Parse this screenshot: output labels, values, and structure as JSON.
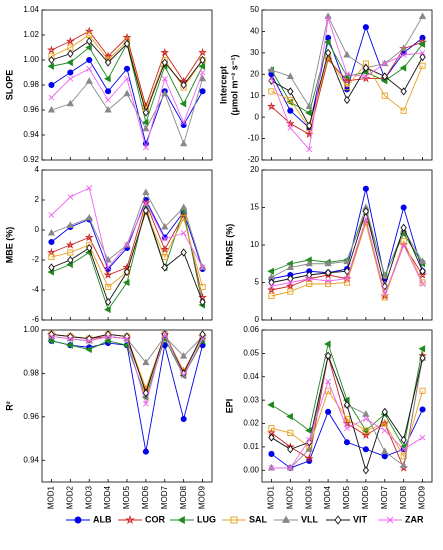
{
  "legend": {
    "series": [
      {
        "name": "ALB",
        "color": "#0000ee",
        "marker": "circle"
      },
      {
        "name": "COR",
        "color": "#cc2222",
        "marker": "star"
      },
      {
        "name": "LUG",
        "color": "#1f8a1f",
        "marker": "triangle-left"
      },
      {
        "name": "SAL",
        "color": "#e8a020",
        "marker": "square"
      },
      {
        "name": "VLL",
        "color": "#888888",
        "marker": "triangle-up"
      },
      {
        "name": "VIT",
        "color": "#111111",
        "marker": "diamond"
      },
      {
        "name": "ZAR",
        "color": "#ee66ee",
        "marker": "x"
      }
    ]
  },
  "chart_data": [
    {
      "type": "line",
      "ylabel": "SLOPE",
      "ylim": [
        0.92,
        1.04
      ],
      "yticks": [
        0.92,
        0.94,
        0.96,
        0.98,
        {
          "value": 1,
          "label": "1.00"
        },
        1.02,
        1.04
      ],
      "series": [
        {
          "values": [
            0.98,
            0.99,
            1.0,
            0.975,
            0.993,
            0.933,
            0.975,
            0.948,
            0.975
          ]
        },
        {
          "values": [
            1.008,
            1.015,
            1.023,
            1.003,
            1.018,
            0.963,
            1.006,
            0.983,
            1.006
          ]
        },
        {
          "values": [
            0.995,
            0.998,
            1.01,
            0.985,
            1.013,
            0.95,
            0.995,
            0.965,
            0.995
          ]
        },
        {
          "values": [
            1.003,
            1.01,
            1.02,
            1.0,
            1.015,
            0.96,
            1.0,
            0.978,
            1.0
          ]
        },
        {
          "values": [
            0.96,
            0.965,
            0.983,
            0.96,
            0.973,
            0.945,
            0.973,
            0.933,
            0.985
          ]
        },
        {
          "values": [
            1.0,
            1.005,
            1.015,
            0.998,
            1.013,
            0.958,
            0.998,
            0.98,
            1.0
          ]
        },
        {
          "values": [
            0.97,
            0.985,
            0.993,
            0.968,
            0.985,
            0.93,
            0.985,
            0.95,
            0.99
          ]
        }
      ]
    },
    {
      "type": "line",
      "ylabel": "Intercept",
      "ylabel2": "(μmol m⁻² s⁻¹)",
      "ylim": [
        -20,
        50
      ],
      "yticks": [
        -20,
        -10,
        0,
        10,
        20,
        30,
        40,
        50
      ],
      "series": [
        {
          "values": [
            20,
            3,
            -5,
            37,
            13,
            42,
            18,
            30,
            37
          ]
        },
        {
          "values": [
            5,
            -3,
            -8,
            27,
            17,
            18,
            18,
            32,
            35
          ]
        },
        {
          "values": [
            22,
            7,
            2,
            35,
            19,
            21,
            17,
            23,
            34
          ]
        },
        {
          "values": [
            12,
            8,
            -5,
            28,
            14,
            25,
            10,
            3,
            24
          ]
        },
        {
          "values": [
            22,
            19,
            5,
            47,
            29,
            23,
            25,
            32,
            47
          ]
        },
        {
          "values": [
            17,
            12,
            -4,
            30,
            8,
            23,
            19,
            12,
            28
          ]
        },
        {
          "values": [
            18,
            -5,
            -15,
            46,
            20,
            19,
            25,
            29,
            30
          ]
        }
      ]
    },
    {
      "type": "line",
      "ylabel": "MBE (%)",
      "ylim": [
        -6,
        4
      ],
      "yticks": [
        -6,
        -4,
        -2,
        0,
        2,
        4
      ],
      "series": [
        {
          "values": [
            -0.8,
            0.2,
            0.7,
            -2.6,
            -1.2,
            2.0,
            -0.5,
            1.2,
            -2.6
          ]
        },
        {
          "values": [
            -1.5,
            -1.0,
            -0.5,
            -3.0,
            -2.5,
            1.8,
            -1.3,
            1.0,
            -4.5
          ]
        },
        {
          "values": [
            -2.8,
            -2.3,
            -1.5,
            -5.3,
            -3.5,
            1.5,
            -2.5,
            1.3,
            -5.0
          ]
        },
        {
          "values": [
            -1.8,
            -1.5,
            -1.0,
            -3.8,
            -2.8,
            1.2,
            -1.8,
            0.8,
            -3.8
          ]
        },
        {
          "values": [
            -0.2,
            0.3,
            0.8,
            -2.0,
            -1.0,
            2.5,
            0.2,
            1.5,
            -2.5
          ]
        },
        {
          "values": [
            -2.5,
            -2.0,
            -1.2,
            -4.8,
            -2.8,
            1.3,
            -2.5,
            -1.5,
            -4.8
          ]
        },
        {
          "values": [
            1.0,
            2.2,
            2.8,
            -2.5,
            -1.0,
            1.8,
            -0.6,
            -0.2,
            -2.5
          ]
        }
      ]
    },
    {
      "type": "line",
      "ylabel": "RMSE (%)",
      "ylim": [
        0,
        20
      ],
      "yticks": [
        0,
        5,
        10,
        15,
        20
      ],
      "series": [
        {
          "values": [
            5.5,
            6.0,
            6.5,
            6.3,
            6.8,
            17.5,
            5.5,
            15.0,
            6.5
          ]
        },
        {
          "values": [
            4.0,
            4.5,
            5.5,
            6.0,
            5.5,
            13.0,
            3.2,
            10.0,
            6.0
          ]
        },
        {
          "values": [
            6.5,
            7.5,
            8.0,
            7.7,
            8.0,
            14.5,
            6.0,
            11.5,
            7.5
          ]
        },
        {
          "values": [
            3.2,
            3.8,
            4.8,
            4.8,
            5.0,
            13.0,
            3.0,
            10.5,
            5.0
          ]
        },
        {
          "values": [
            5.7,
            7.0,
            7.5,
            7.5,
            7.8,
            15.0,
            5.8,
            12.0,
            7.8
          ]
        },
        {
          "values": [
            5.0,
            5.5,
            6.0,
            6.3,
            6.5,
            14.5,
            4.5,
            12.3,
            6.5
          ]
        },
        {
          "values": [
            4.5,
            5.0,
            5.5,
            5.2,
            5.5,
            13.5,
            3.5,
            10.0,
            4.8
          ]
        }
      ]
    },
    {
      "type": "line",
      "ylabel": "R²",
      "ylim": [
        0.93,
        1.0
      ],
      "yticks": [
        0.94,
        0.96,
        0.98,
        {
          "value": 1,
          "label": "1.00"
        }
      ],
      "categories": [
        "MOD1",
        "MOD2",
        "MOD3",
        "MOD4",
        "MOD5",
        "MOD6",
        "MOD7",
        "MOD8",
        "MOD9"
      ],
      "series": [
        {
          "values": [
            0.995,
            0.993,
            0.992,
            0.994,
            0.993,
            0.944,
            0.993,
            0.959,
            0.993
          ]
        },
        {
          "values": [
            0.998,
            0.997,
            0.996,
            0.997,
            0.996,
            0.972,
            0.998,
            0.981,
            0.997
          ]
        },
        {
          "values": [
            0.995,
            0.993,
            0.991,
            0.995,
            0.993,
            0.969,
            0.996,
            0.979,
            0.995
          ]
        },
        {
          "values": [
            0.998,
            0.997,
            0.996,
            0.998,
            0.997,
            0.973,
            0.998,
            0.981,
            0.997
          ]
        },
        {
          "values": [
            0.997,
            0.996,
            0.995,
            0.997,
            0.996,
            0.985,
            0.997,
            0.988,
            0.997
          ]
        },
        {
          "values": [
            0.998,
            0.997,
            0.996,
            0.998,
            0.997,
            0.971,
            0.998,
            0.98,
            0.998
          ]
        },
        {
          "values": [
            0.997,
            0.996,
            0.995,
            0.997,
            0.996,
            0.966,
            0.998,
            0.979,
            0.996
          ]
        }
      ]
    },
    {
      "type": "line",
      "ylabel": "EPI",
      "ylim": [
        -0.005,
        0.06
      ],
      "yticks": [
        {
          "value": 0,
          "label": "0.00"
        },
        0.01,
        0.02,
        0.03,
        0.04,
        0.05,
        {
          "value": 0.06,
          "label": "0.06"
        }
      ],
      "categories": [
        "MOD1",
        "MOD2",
        "MOD3",
        "MOD4",
        "MOD5",
        "MOD6",
        "MOD7",
        "MOD8",
        "MOD9"
      ],
      "series": [
        {
          "values": [
            0.007,
            0.001,
            0.004,
            0.025,
            0.012,
            0.009,
            0.006,
            0.009,
            0.026
          ]
        },
        {
          "values": [
            0.016,
            0.01,
            0.005,
            0.049,
            0.02,
            0.015,
            0.02,
            0.001,
            0.049
          ]
        },
        {
          "values": [
            0.028,
            0.023,
            0.017,
            0.054,
            0.03,
            0.017,
            0.024,
            0.01,
            0.052
          ]
        },
        {
          "values": [
            0.018,
            0.016,
            0.01,
            0.034,
            0.022,
            0.017,
            0.02,
            0.006,
            0.034
          ]
        },
        {
          "values": [
            0.001,
            0.001,
            0.009,
            0.049,
            0.028,
            0.024,
            0.008,
            0.002,
            0.048
          ]
        },
        {
          "values": [
            0.014,
            0.009,
            0.012,
            0.049,
            0.028,
            0.0,
            0.025,
            0.013,
            0.048
          ]
        },
        {
          "values": [
            0.001,
            0.001,
            0.013,
            0.038,
            0.018,
            0.022,
            0.017,
            0.009,
            0.014
          ]
        }
      ]
    }
  ]
}
